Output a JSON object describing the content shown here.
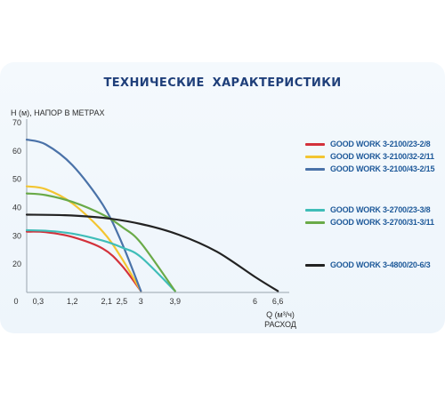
{
  "chart_data": {
    "type": "line",
    "title": "ТЕХНИЧЕСКИЕ  ХАРАКТЕРИСТИКИ",
    "ylabel": "H (м), НАПОР В МЕТРАХ",
    "xlabel_line1": "Q (м³/ч)",
    "xlabel_line2": "РАСХОД",
    "xlim": [
      0,
      6.9
    ],
    "ylim": [
      10,
      70
    ],
    "x_ticks": [
      0,
      0.3,
      1.2,
      2.1,
      2.5,
      3,
      3.9,
      6,
      6.6
    ],
    "x_tick_labels": [
      "0",
      "0,3",
      "1,2",
      "2,1",
      "2,5",
      "3",
      "3,9",
      "6",
      "6,6"
    ],
    "y_ticks": [
      20,
      30,
      40,
      50,
      60,
      70
    ],
    "y_tick_labels": [
      "20",
      "30",
      "40",
      "50",
      "60",
      "70"
    ],
    "grid": false,
    "legend_position": "right",
    "series": [
      {
        "name": "GOOD WORK 3-2100/23-2/8",
        "color": "#d3313b",
        "x": [
          0,
          0.5,
          1.2,
          2.0,
          2.5,
          3.0
        ],
        "y": [
          31.5,
          31.3,
          29.6,
          25.5,
          19.5,
          10.5
        ]
      },
      {
        "name": "GOOD WORK 3-2100/32-2/11",
        "color": "#f3c531",
        "x": [
          0,
          0.5,
          1.2,
          2.0,
          2.5,
          3.0
        ],
        "y": [
          47.5,
          46.5,
          41.5,
          31.5,
          22,
          10.5
        ]
      },
      {
        "name": "GOOD WORK 3-2100/43-2/15",
        "color": "#4a72a8",
        "x": [
          0,
          0.5,
          1.2,
          2.0,
          2.5,
          3.0
        ],
        "y": [
          64,
          62.3,
          55,
          41,
          27.5,
          10.5
        ]
      },
      {
        "name": "GOOD WORK 3-2700/23-3/8",
        "color": "#3fbdb8",
        "x": [
          0,
          0.5,
          1.2,
          2.0,
          2.5,
          3.0,
          3.9
        ],
        "y": [
          32,
          31.8,
          30.8,
          28.3,
          25.9,
          22.5,
          10.5
        ]
      },
      {
        "name": "GOOD WORK 3-2700/31-3/11",
        "color": "#6aaa48",
        "x": [
          0,
          0.5,
          1.2,
          2.0,
          2.5,
          3.0,
          3.9
        ],
        "y": [
          45,
          44.4,
          42,
          37.5,
          33.2,
          27.5,
          10.5
        ]
      },
      {
        "name": "GOOD WORK 3-4800/20-6/3",
        "color": "#222222",
        "x": [
          0,
          1.0,
          2.0,
          3.0,
          4.0,
          5.0,
          6.0,
          6.6
        ],
        "y": [
          37.5,
          37.3,
          36.4,
          34.2,
          30.4,
          24.4,
          15.5,
          10.5
        ]
      }
    ]
  }
}
